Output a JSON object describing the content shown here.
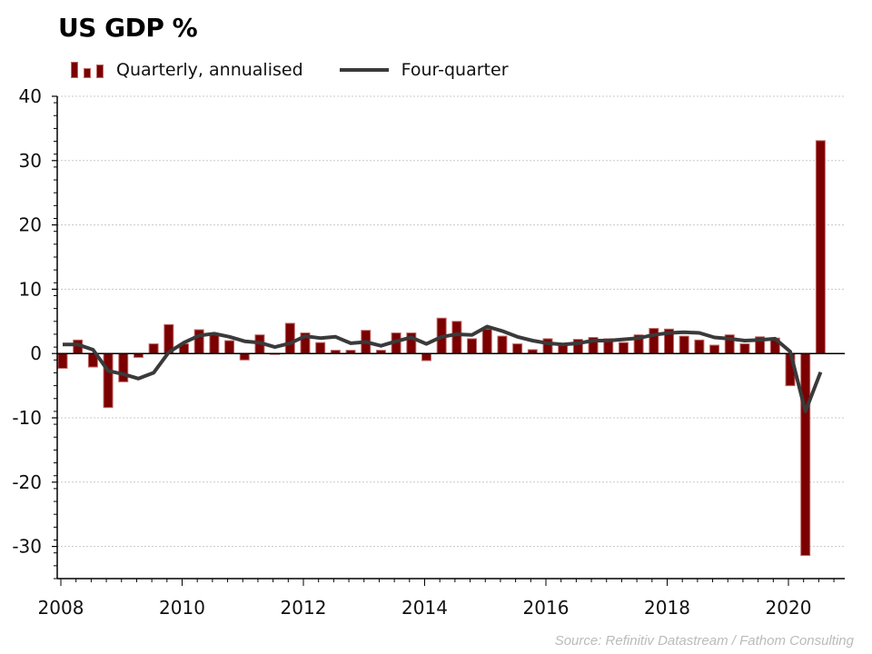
{
  "chart_data": {
    "type": "bar",
    "title": "US GDP %",
    "xlabel": "",
    "ylabel": "",
    "ylim": [
      -35,
      40
    ],
    "yticks": [
      40,
      30,
      20,
      10,
      0,
      -10,
      -20,
      -30
    ],
    "xticks": [
      "2008",
      "2010",
      "2012",
      "2014",
      "2016",
      "2018",
      "2020"
    ],
    "xrange": [
      2008,
      2020.9
    ],
    "grid": true,
    "legend_position": "top-left",
    "categories": [
      "2008Q1",
      "2008Q2",
      "2008Q3",
      "2008Q4",
      "2009Q1",
      "2009Q2",
      "2009Q3",
      "2009Q4",
      "2010Q1",
      "2010Q2",
      "2010Q3",
      "2010Q4",
      "2011Q1",
      "2011Q2",
      "2011Q3",
      "2011Q4",
      "2012Q1",
      "2012Q2",
      "2012Q3",
      "2012Q4",
      "2013Q1",
      "2013Q2",
      "2013Q3",
      "2013Q4",
      "2014Q1",
      "2014Q2",
      "2014Q3",
      "2014Q4",
      "2015Q1",
      "2015Q2",
      "2015Q3",
      "2015Q4",
      "2016Q1",
      "2016Q2",
      "2016Q3",
      "2016Q4",
      "2017Q1",
      "2017Q2",
      "2017Q3",
      "2017Q4",
      "2018Q1",
      "2018Q2",
      "2018Q3",
      "2018Q4",
      "2019Q1",
      "2019Q2",
      "2019Q3",
      "2019Q4",
      "2020Q1",
      "2020Q2",
      "2020Q3"
    ],
    "series": [
      {
        "name": "Quarterly, annualised",
        "type": "bar",
        "color": "#7b0000",
        "values": [
          -2.3,
          2.1,
          -2.1,
          -8.4,
          -4.4,
          -0.6,
          1.5,
          4.5,
          1.5,
          3.7,
          3.0,
          2.0,
          -1.0,
          2.9,
          -0.1,
          4.7,
          3.2,
          1.7,
          0.5,
          0.5,
          3.6,
          0.5,
          3.2,
          3.2,
          -1.1,
          5.5,
          5.0,
          2.3,
          3.8,
          2.7,
          1.5,
          0.6,
          2.3,
          1.3,
          2.2,
          2.5,
          2.3,
          1.7,
          2.9,
          3.9,
          3.8,
          2.7,
          2.1,
          1.3,
          2.9,
          1.5,
          2.6,
          2.4,
          -5.0,
          -31.4,
          33.1
        ]
      },
      {
        "name": "Four-quarter",
        "type": "line",
        "color": "#3a3a3a",
        "values": [
          1.4,
          1.4,
          0.6,
          -2.7,
          -3.2,
          -3.9,
          -3.0,
          0.2,
          1.7,
          2.8,
          3.1,
          2.6,
          1.9,
          1.7,
          1.0,
          1.6,
          2.7,
          2.4,
          2.6,
          1.6,
          1.8,
          1.2,
          1.9,
          2.5,
          1.5,
          2.6,
          3.0,
          2.9,
          4.2,
          3.5,
          2.6,
          2.0,
          1.6,
          1.4,
          1.6,
          2.0,
          2.0,
          2.2,
          2.4,
          2.9,
          3.2,
          3.3,
          3.2,
          2.5,
          2.3,
          2.0,
          2.1,
          2.3,
          0.3,
          -9.0,
          -2.9
        ]
      }
    ],
    "source": "Source: Refinitiv Datastream / Fathom Consulting"
  },
  "legend": {
    "bars_label": "Quarterly, annualised",
    "line_label": "Four-quarter"
  }
}
